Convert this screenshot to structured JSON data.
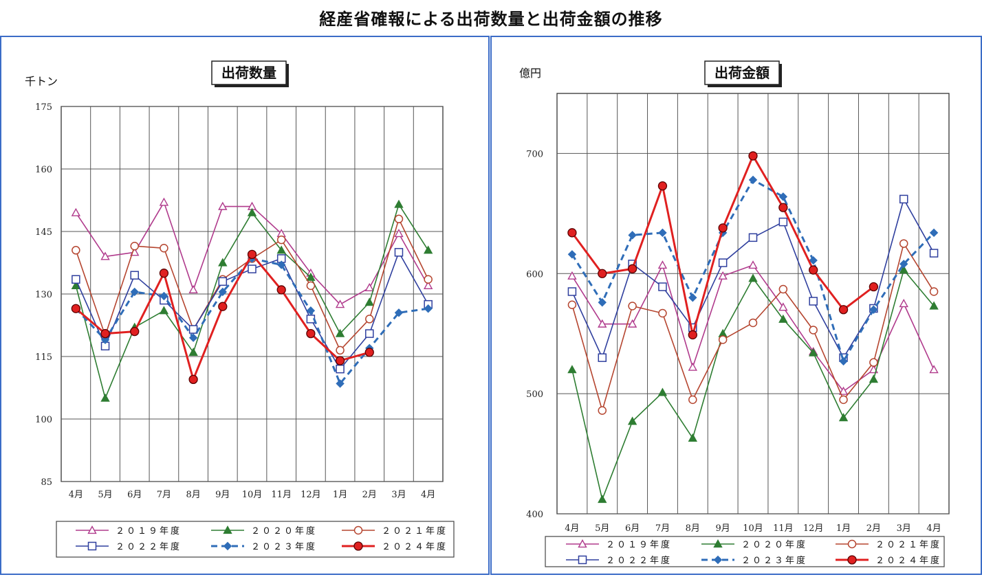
{
  "page": {
    "title": "経産省確報による出荷数量と出荷金額の推移"
  },
  "colors": {
    "2019": "#b03a8c",
    "2020": "#2e7d32",
    "2021": "#b5452f",
    "2022": "#2f3f9e",
    "2023": "#2f6db8",
    "2024": "#e02020"
  },
  "legend_labels": [
    "２０１９年度",
    "２０２０年度",
    "２０２１年度",
    "２０２２年度",
    "２０２３年度",
    "２０２４年度"
  ],
  "chart_data": [
    {
      "type": "line",
      "title": "出荷数量",
      "ylabel": "千トン",
      "ylim": [
        85,
        175
      ],
      "yticks": [
        "85",
        "100",
        "115",
        "130",
        "145",
        "160",
        "175"
      ],
      "categories": [
        "4月",
        "5月",
        "6月",
        "7月",
        "8月",
        "9月",
        "10月",
        "11月",
        "12月",
        "1月",
        "2月",
        "3月",
        "4月"
      ],
      "grid": true,
      "legend_position": "bottom",
      "series": [
        {
          "name": "２０１９年度",
          "marker": "triangle-open",
          "dash": "solid",
          "width": 1.6,
          "values": [
            149.5,
            139,
            140,
            152,
            131,
            151,
            151,
            144.5,
            135,
            127.5,
            131.5,
            144.5,
            132
          ]
        },
        {
          "name": "２０２０年度",
          "marker": "triangle-filled",
          "dash": "solid",
          "width": 1.6,
          "values": [
            132,
            105,
            122,
            126,
            116,
            137.5,
            149.5,
            140.5,
            134,
            120.5,
            128,
            151.5,
            140.5
          ]
        },
        {
          "name": "２０２１年度",
          "marker": "circle-open",
          "dash": "solid",
          "width": 1.6,
          "values": [
            140.5,
            120,
            141.5,
            141,
            121.5,
            133.5,
            138.5,
            143,
            132,
            116.5,
            124,
            148,
            133.5
          ]
        },
        {
          "name": "２０２２年度",
          "marker": "square-open",
          "dash": "solid",
          "width": 1.6,
          "values": [
            133.5,
            117.5,
            134.5,
            128.5,
            121.5,
            133,
            136,
            138.5,
            124,
            112,
            120.5,
            140,
            127.5
          ]
        },
        {
          "name": "２０２３年度",
          "marker": "diamond-filled",
          "dash": "dashed",
          "width": 3,
          "values": [
            126.5,
            119,
            130.5,
            129.5,
            119.5,
            130.5,
            138.5,
            137,
            126,
            108.5,
            117,
            125.5,
            126.5
          ]
        },
        {
          "name": "２０２４年度",
          "marker": "circle-filled",
          "dash": "solid",
          "width": 3,
          "values": [
            126.5,
            120.5,
            121,
            135,
            109.5,
            127,
            139.5,
            131,
            120.5,
            114,
            116,
            null,
            null
          ]
        }
      ]
    },
    {
      "type": "line",
      "title": "出荷金額",
      "ylabel": "億円",
      "ylim": [
        400,
        750
      ],
      "yticks": [
        "400",
        "500",
        "600",
        "700"
      ],
      "categories": [
        "4月",
        "5月",
        "6月",
        "7月",
        "8月",
        "9月",
        "10月",
        "11月",
        "12月",
        "1月",
        "2月",
        "3月",
        "4月"
      ],
      "grid": true,
      "legend_position": "bottom",
      "series": [
        {
          "name": "２０１９年度",
          "marker": "triangle-open",
          "dash": "solid",
          "width": 1.6,
          "values": [
            598,
            558,
            558,
            607,
            522,
            598,
            607,
            572,
            535,
            502,
            520,
            575,
            520
          ]
        },
        {
          "name": "２０２０年度",
          "marker": "triangle-filled",
          "dash": "solid",
          "width": 1.6,
          "values": [
            520,
            412,
            477,
            501,
            463,
            550,
            596,
            562,
            534,
            480,
            512,
            603,
            573
          ]
        },
        {
          "name": "２０２１年度",
          "marker": "circle-open",
          "dash": "solid",
          "width": 1.6,
          "values": [
            574,
            486,
            573,
            567,
            495,
            545,
            559,
            587,
            553,
            495,
            526,
            625,
            585
          ]
        },
        {
          "name": "２０２２年度",
          "marker": "square-open",
          "dash": "solid",
          "width": 1.6,
          "values": [
            585,
            530,
            608,
            589,
            555,
            609,
            630,
            643,
            577,
            530,
            571,
            662,
            617
          ]
        },
        {
          "name": "２０２３年度",
          "marker": "diamond-filled",
          "dash": "dashed",
          "width": 3,
          "values": [
            616,
            576,
            632,
            634,
            580,
            634,
            678,
            664,
            611,
            527,
            570,
            608,
            634
          ]
        },
        {
          "name": "２０２４年度",
          "marker": "circle-filled",
          "dash": "solid",
          "width": 3,
          "values": [
            634,
            600,
            604,
            673,
            549,
            638,
            698,
            655,
            603,
            570,
            589,
            null,
            null
          ]
        }
      ]
    }
  ]
}
